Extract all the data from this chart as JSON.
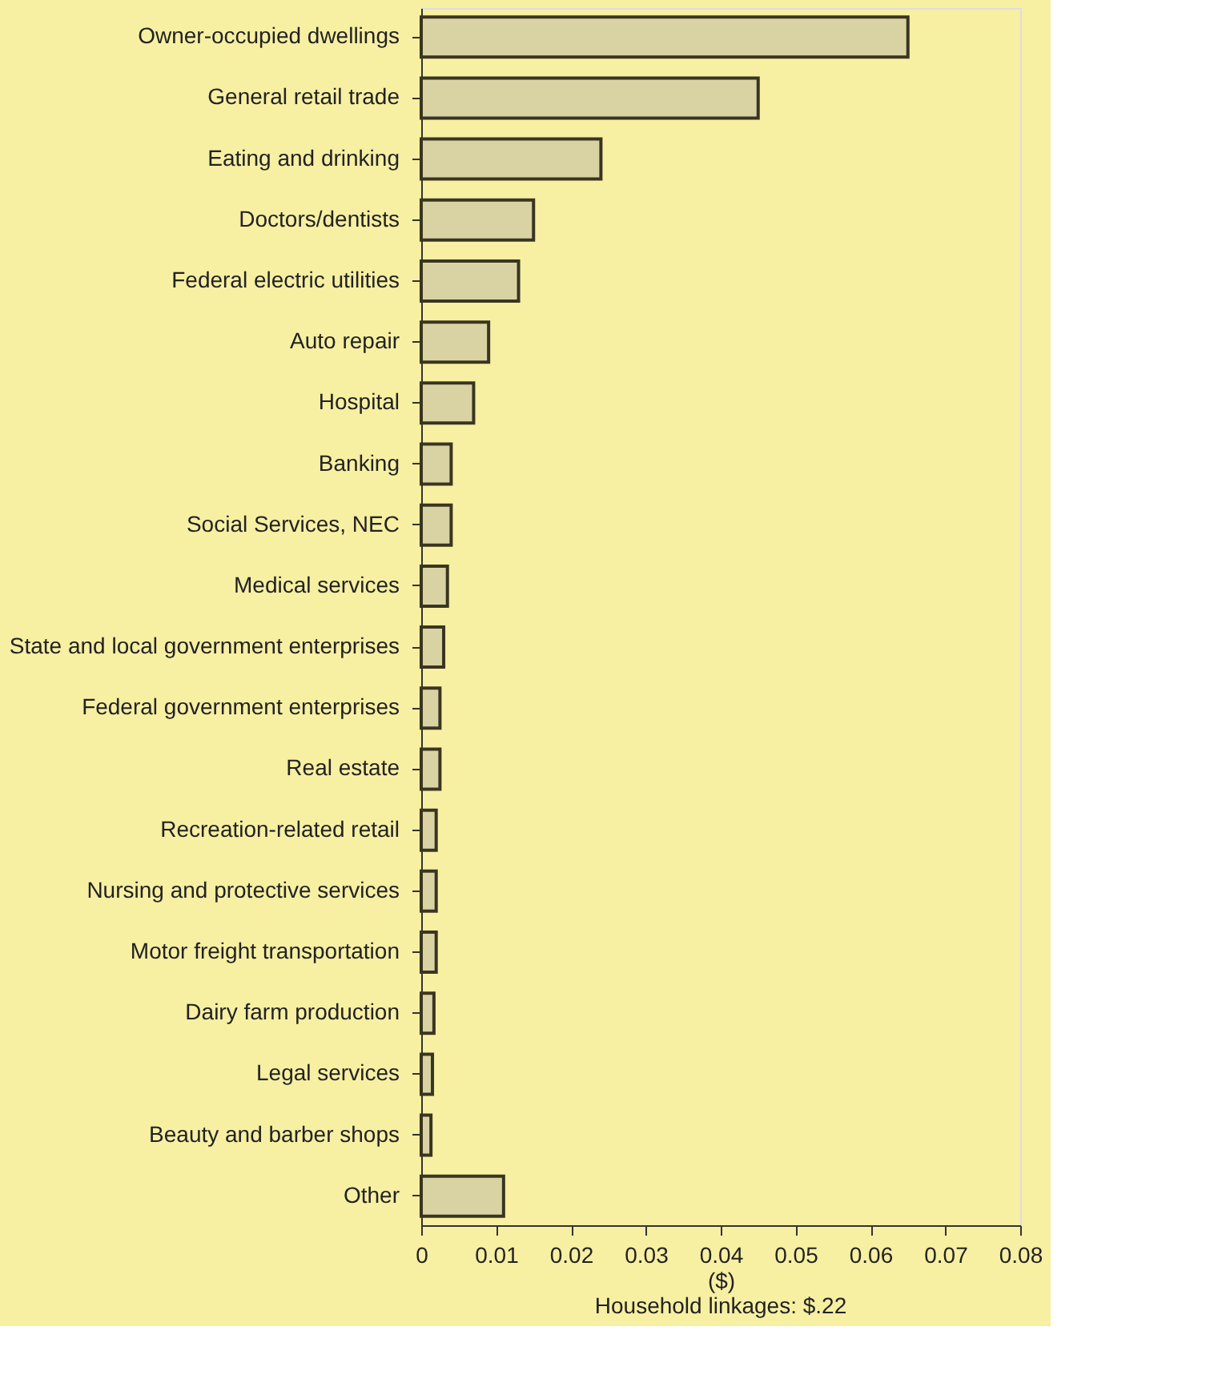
{
  "chart_data": {
    "type": "bar",
    "orientation": "horizontal",
    "xlabel": "($)",
    "categories": [
      "Owner-occupied dwellings",
      "General retail trade",
      "Eating and drinking",
      "Doctors/dentists",
      "Federal electric utilities",
      "Auto repair",
      "Hospital",
      "Banking",
      "Social Services, NEC",
      "Medical services",
      "State and local government enterprises",
      "Federal government enterprises",
      "Real estate",
      "Recreation-related retail",
      "Nursing and protective services",
      "Motor freight transportation",
      "Dairy farm production",
      "Legal services",
      "Beauty and barber shops",
      "Other"
    ],
    "values": [
      0.065,
      0.045,
      0.024,
      0.015,
      0.013,
      0.009,
      0.007,
      0.004,
      0.004,
      0.0035,
      0.003,
      0.0025,
      0.0025,
      0.002,
      0.002,
      0.002,
      0.0017,
      0.0015,
      0.0013,
      0.011
    ],
    "color": "#d9d3a3",
    "xlim": [
      0,
      0.08
    ],
    "xticks": [
      0,
      0.01,
      0.02,
      0.03,
      0.04,
      0.05,
      0.06,
      0.07,
      0.08
    ],
    "grid": false,
    "annotations": [
      "Household linkages: $.22"
    ]
  }
}
